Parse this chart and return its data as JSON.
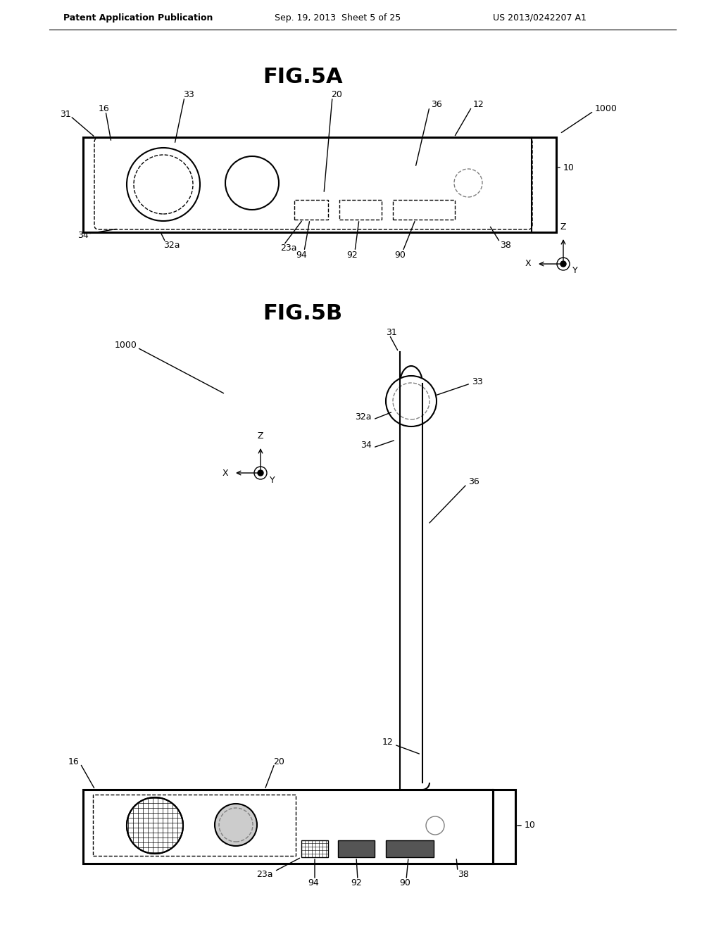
{
  "bg_color": "#ffffff",
  "header_text": "Patent Application Publication",
  "header_date": "Sep. 19, 2013  Sheet 5 of 25",
  "header_patent": "US 2013/0242207 A1",
  "fig5a_title": "FIG.5A",
  "fig5b_title": "FIG.5B",
  "line_color": "#000000",
  "gray_color": "#888888",
  "light_gray": "#bbbbbb",
  "dark_fill": "#555555",
  "hatching_color": "#666666"
}
